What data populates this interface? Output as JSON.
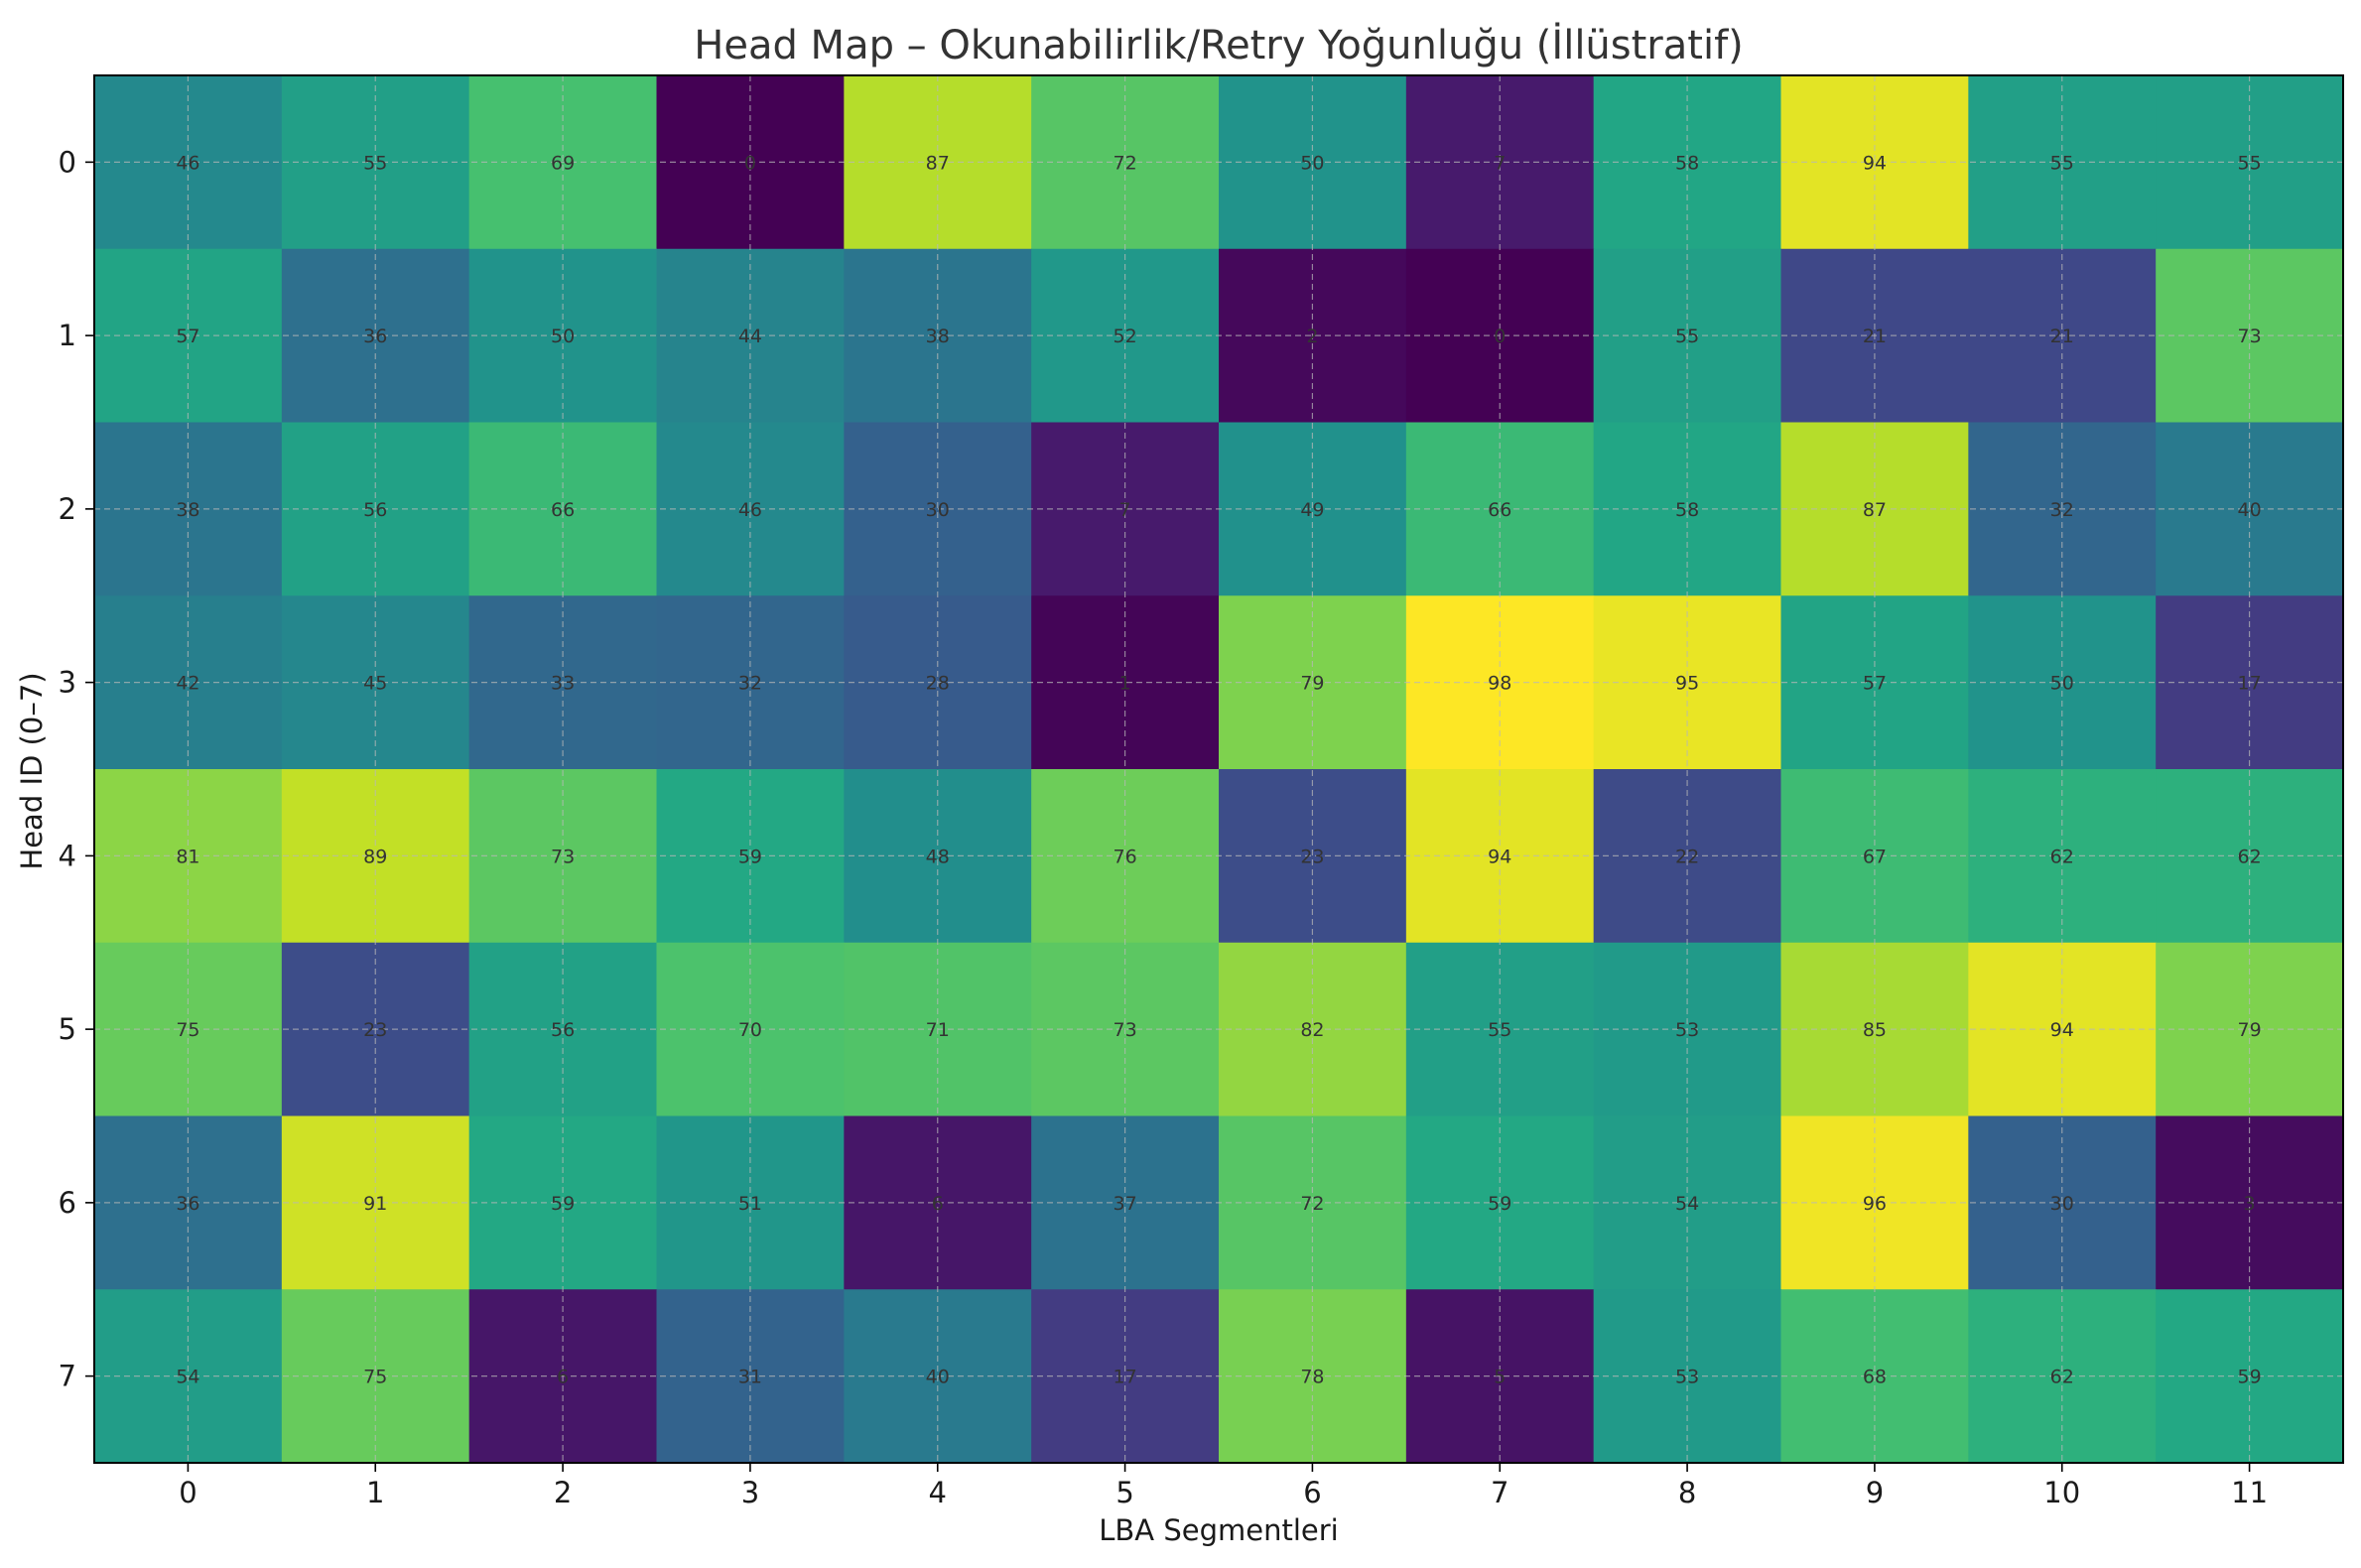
{
  "chart_data": {
    "type": "heatmap",
    "title": "Head Map – Okunabilirlik/Retry Yoğunluğu (İllüstratif)",
    "xlabel": "LBA Segmentleri",
    "ylabel": "Head ID (0–7)",
    "x_categories": [
      "0",
      "1",
      "2",
      "3",
      "4",
      "5",
      "6",
      "7",
      "8",
      "9",
      "10",
      "11"
    ],
    "y_categories": [
      "0",
      "1",
      "2",
      "3",
      "4",
      "5",
      "6",
      "7"
    ],
    "values": [
      [
        46,
        55,
        69,
        0,
        87,
        72,
        50,
        7,
        58,
        94,
        55,
        55
      ],
      [
        57,
        36,
        50,
        44,
        38,
        52,
        2,
        0,
        55,
        21,
        21,
        73
      ],
      [
        38,
        56,
        66,
        46,
        30,
        7,
        49,
        66,
        58,
        87,
        32,
        40
      ],
      [
        42,
        45,
        33,
        32,
        28,
        1,
        79,
        98,
        95,
        57,
        50,
        17
      ],
      [
        81,
        89,
        73,
        59,
        48,
        76,
        23,
        94,
        22,
        67,
        62,
        62
      ],
      [
        75,
        23,
        56,
        70,
        71,
        73,
        82,
        55,
        53,
        85,
        94,
        79
      ],
      [
        36,
        91,
        59,
        51,
        6,
        37,
        72,
        59,
        54,
        96,
        30,
        3
      ],
      [
        54,
        75,
        6,
        31,
        40,
        17,
        78,
        5,
        53,
        68,
        62,
        59
      ]
    ],
    "colormap": "viridis",
    "grid": true,
    "legend": "none"
  }
}
